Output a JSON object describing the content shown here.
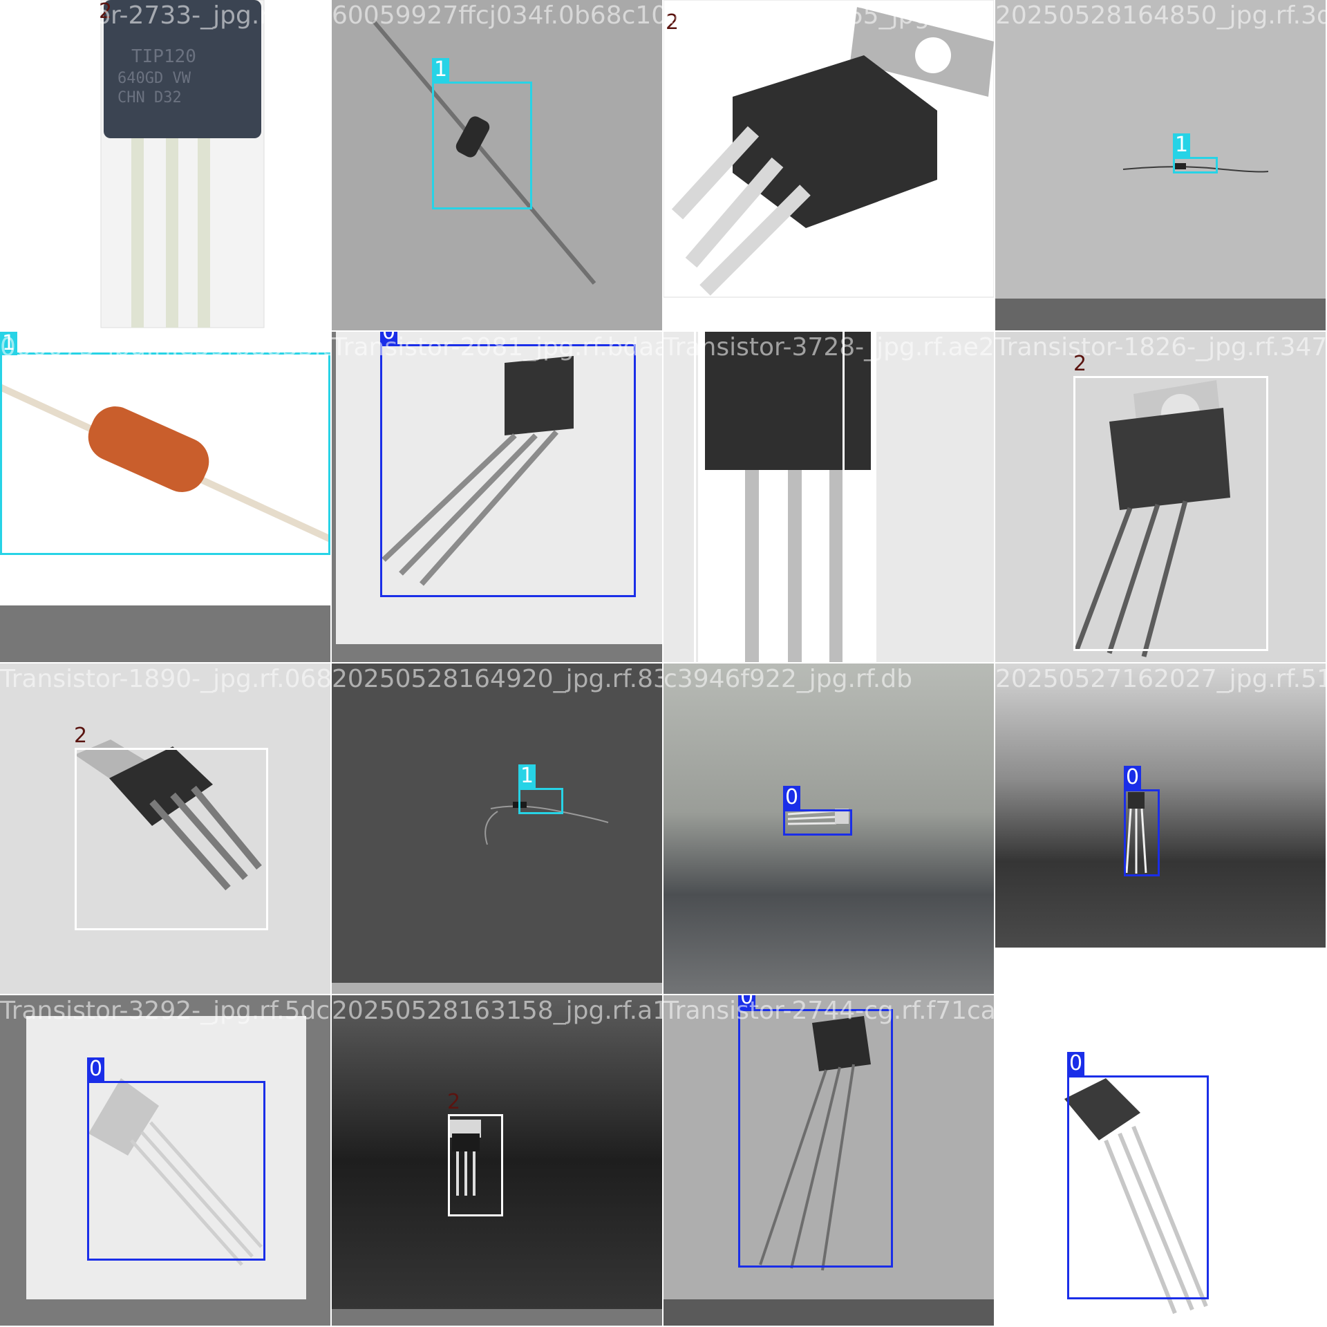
{
  "colors": {
    "class_0": "#1a2ee8",
    "class_1": "#27d3e6",
    "class_2": "#ffffff",
    "class_2_label": "#5a1410"
  },
  "tiles": [
    {
      "filename": "Transistor-2733-_jpg.rf.cef9",
      "labels": [
        "2"
      ]
    },
    {
      "filename": "60059927ffcj034f.0b68c10cfbc6",
      "labels": [
        "1"
      ]
    },
    {
      "filename": "ttransistor-34665_jpg.rf.2ad0",
      "labels": [
        "2"
      ]
    },
    {
      "filename": "20250528164850_jpg.rf.3d",
      "labels": [
        "1"
      ]
    },
    {
      "filename": "000075_jpg.rf.e59fb8833f3c7",
      "labels": [
        "1"
      ]
    },
    {
      "filename": "Transistor-2081_jpg.rf.bdaa",
      "labels": [
        "0"
      ]
    },
    {
      "filename": "Transistor-3728-_jpg.rf.ae2c",
      "labels": [
        "2"
      ]
    },
    {
      "filename": "Transistor-1826-_jpg.rf.347a",
      "labels": [
        "2"
      ]
    },
    {
      "filename": "Transistor-1890-_jpg.rf.0687",
      "labels": [
        "2"
      ]
    },
    {
      "filename": "20250528164920_jpg.rf.83",
      "labels": [
        "1"
      ]
    },
    {
      "filename": "c3946f922_jpg.rf.db",
      "labels": [
        "0"
      ]
    },
    {
      "filename": "20250527162027_jpg.rf.51",
      "labels": [
        "0"
      ]
    },
    {
      "filename": "Transistor-3292-_jpg.rf.5dc0",
      "labels": [
        "0"
      ]
    },
    {
      "filename": "20250528163158_jpg.rf.a1",
      "labels": [
        "2"
      ]
    },
    {
      "filename": "Transistor-2744-cg.rf.f71ca",
      "labels": [
        "0"
      ]
    },
    {
      "filename": "l25-bel-gl1.rf.9dcf66b8dd6",
      "labels": [
        "0"
      ]
    }
  ]
}
